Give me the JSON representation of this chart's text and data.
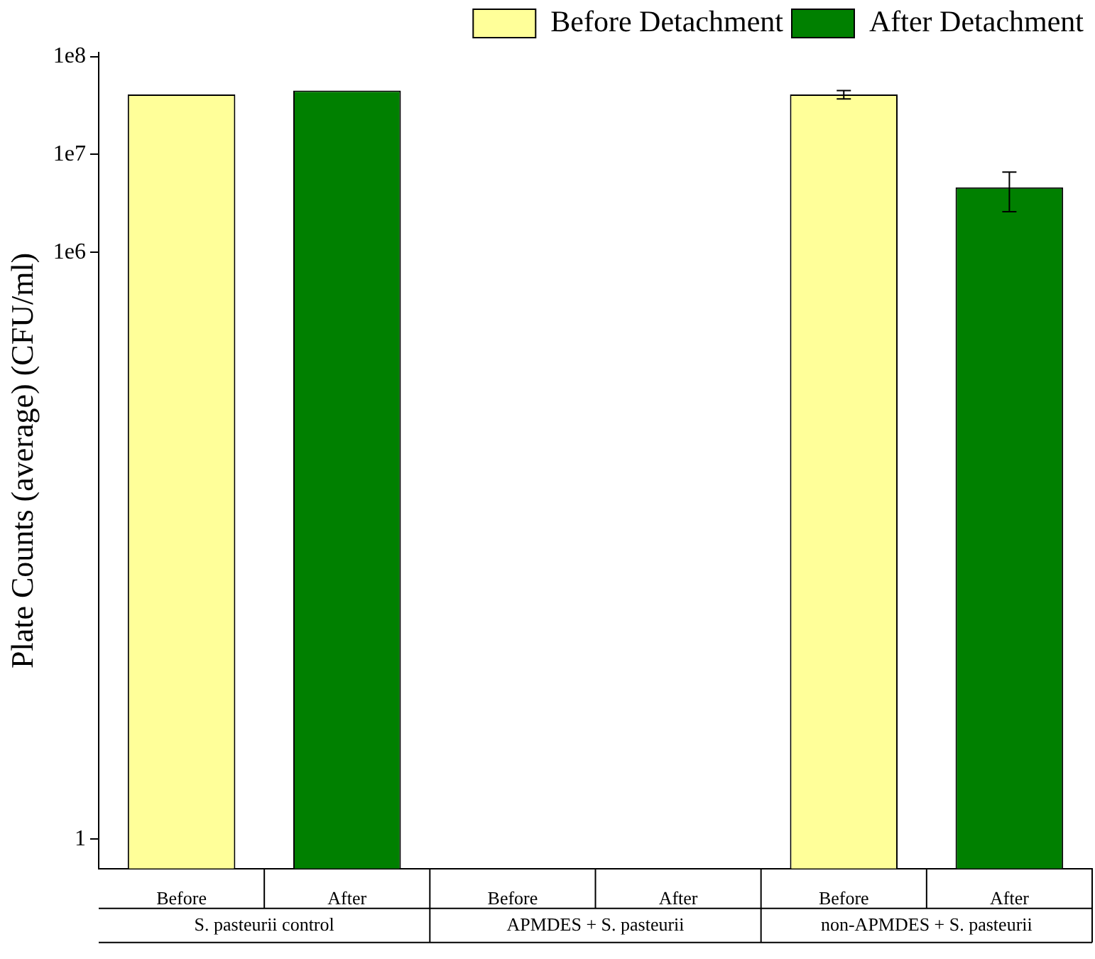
{
  "chart_data": {
    "type": "bar",
    "ylabel": "Plate Counts (average) (CFU/ml)",
    "categories": [
      "Before",
      "After",
      "Before",
      "After",
      "Before",
      "After"
    ],
    "series": [
      {
        "name": "Before Detachment",
        "color": "#ffff99",
        "values": [
          41000000,
          null,
          null,
          null,
          41000000,
          null
        ],
        "errors": [
          null,
          null,
          null,
          null,
          [
            37000000,
            45000000
          ],
          null
        ]
      },
      {
        "name": "After Detachment",
        "color": "#008000",
        "values": [
          null,
          45000000,
          null,
          null,
          null,
          4600000
        ],
        "errors": [
          null,
          null,
          null,
          null,
          null,
          [
            2600000,
            6600000
          ]
        ]
      }
    ],
    "log": "y",
    "ylim": [
      0.5,
      110000000
    ],
    "yticks": [
      {
        "value": 1,
        "label": "1"
      },
      {
        "value": 1000000,
        "label": "1e6"
      },
      {
        "value": 10000000,
        "label": "1e7"
      },
      {
        "value": 100000000,
        "label": "1e8"
      }
    ],
    "grid": false,
    "legend": "top right",
    "annotations": [
      "S. pasteurii control",
      "APMDES + S. pasteurii",
      "non-APMDES + S. pasteurii"
    ]
  }
}
